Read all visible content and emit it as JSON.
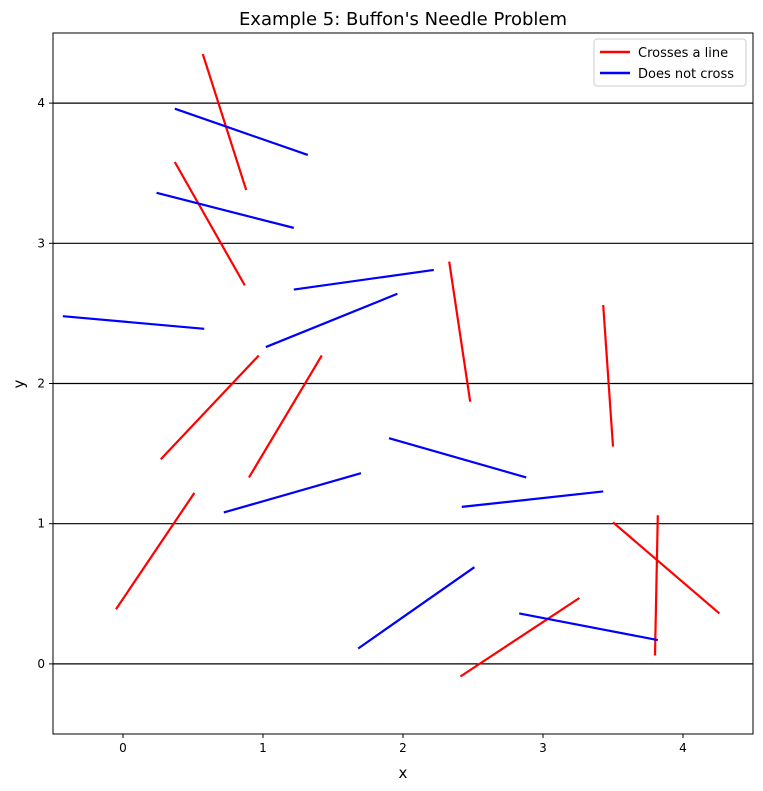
{
  "chart_data": {
    "type": "line",
    "title": "Example 5: Buffon's Needle Problem",
    "xlabel": "x",
    "ylabel": "y",
    "xlim": [
      -0.5,
      4.5
    ],
    "ylim": [
      -0.5,
      4.5
    ],
    "xticks": [
      0,
      1,
      2,
      3,
      4
    ],
    "yticks": [
      0,
      1,
      2,
      3,
      4
    ],
    "grid": false,
    "legend_position": "top-right",
    "horizontal_lines": [
      0,
      1,
      2,
      3,
      4
    ],
    "colors": {
      "crosses": "#ff0000",
      "no_cross": "#0000ff",
      "lines": "#000000"
    },
    "series": [
      {
        "name": "Crosses a line",
        "color": "#ff0000",
        "segments": [
          [
            [
              0.57,
              4.35
            ],
            [
              0.88,
              3.38
            ]
          ],
          [
            [
              0.37,
              3.58
            ],
            [
              0.87,
              2.7
            ]
          ],
          [
            [
              2.33,
              2.87
            ],
            [
              2.48,
              1.87
            ]
          ],
          [
            [
              3.43,
              2.56
            ],
            [
              3.5,
              1.55
            ]
          ],
          [
            [
              0.27,
              1.46
            ],
            [
              0.97,
              2.2
            ]
          ],
          [
            [
              0.9,
              1.33
            ],
            [
              1.42,
              2.2
            ]
          ],
          [
            [
              -0.05,
              0.39
            ],
            [
              0.51,
              1.22
            ]
          ],
          [
            [
              3.5,
              1.01
            ],
            [
              4.26,
              0.36
            ]
          ],
          [
            [
              3.82,
              1.06
            ],
            [
              3.8,
              0.06
            ]
          ],
          [
            [
              2.41,
              -0.09
            ],
            [
              3.26,
              0.47
            ]
          ]
        ]
      },
      {
        "name": "Does not cross",
        "color": "#0000ff",
        "segments": [
          [
            [
              0.37,
              3.96
            ],
            [
              1.32,
              3.63
            ]
          ],
          [
            [
              0.24,
              3.36
            ],
            [
              1.22,
              3.11
            ]
          ],
          [
            [
              1.22,
              2.67
            ],
            [
              2.22,
              2.81
            ]
          ],
          [
            [
              -0.43,
              2.48
            ],
            [
              0.58,
              2.39
            ]
          ],
          [
            [
              1.02,
              2.26
            ],
            [
              1.96,
              2.64
            ]
          ],
          [
            [
              1.9,
              1.61
            ],
            [
              2.88,
              1.33
            ]
          ],
          [
            [
              0.72,
              1.08
            ],
            [
              1.7,
              1.36
            ]
          ],
          [
            [
              2.42,
              1.12
            ],
            [
              3.43,
              1.23
            ]
          ],
          [
            [
              1.68,
              0.11
            ],
            [
              2.51,
              0.69
            ]
          ],
          [
            [
              2.83,
              0.36
            ],
            [
              3.82,
              0.17
            ]
          ]
        ]
      }
    ]
  }
}
